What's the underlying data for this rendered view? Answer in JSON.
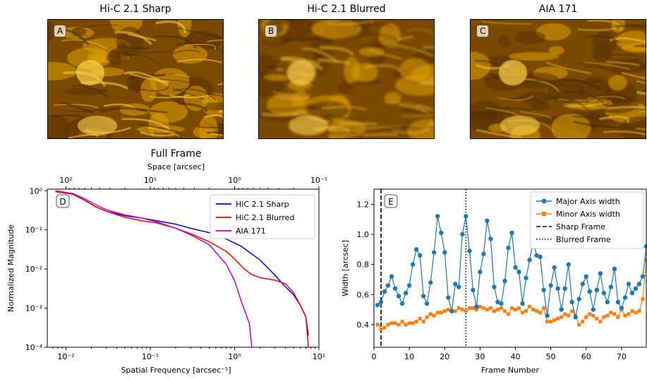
{
  "images": [
    {
      "title": "Hi-C 2.1 Sharp",
      "label": "A"
    },
    {
      "title": "Hi-C 2.1 Blurred",
      "label": "B"
    },
    {
      "title": "AIA 171",
      "label": "C"
    }
  ],
  "chart_data": [
    {
      "type": "line",
      "panel_label": "D",
      "title": "Full Frame",
      "xlabel": "Spatial Frequency  [arcsec⁻¹]",
      "ylabel": "Normalized Magnitude",
      "top_xlabel": "Space [arcsec]",
      "xscale": "log",
      "yscale": "log",
      "xlim": [
        0.006,
        10
      ],
      "ylim": [
        0.0001,
        1.1
      ],
      "x_tick_labels": [
        "10⁻²",
        "10⁻¹",
        "10⁰",
        "10¹"
      ],
      "y_tick_labels": [
        "10⁻⁴",
        "10⁻³",
        "10⁻²",
        "10⁻¹",
        "10⁰"
      ],
      "top_tick_labels": [
        "10²",
        "10¹",
        "10⁰",
        "10⁻¹"
      ],
      "legend_position": "top-right",
      "series": [
        {
          "name": "HiC 2.1 Sharp",
          "color": "#0000ff",
          "x": [
            0.0075,
            0.012,
            0.016,
            0.022,
            0.03,
            0.05,
            0.08,
            0.12,
            0.2,
            0.3,
            0.5,
            0.8,
            1.2,
            2.0,
            3.0,
            4.0,
            5.0,
            6.0,
            7.0,
            7.5
          ],
          "y": [
            0.95,
            0.82,
            0.6,
            0.4,
            0.3,
            0.23,
            0.2,
            0.17,
            0.14,
            0.11,
            0.085,
            0.058,
            0.038,
            0.017,
            0.007,
            0.0035,
            0.0022,
            0.0012,
            0.0006,
            0.0002
          ]
        },
        {
          "name": "HiC 2.1 Blurred",
          "color": "#ff0000",
          "x": [
            0.0075,
            0.012,
            0.016,
            0.022,
            0.03,
            0.05,
            0.08,
            0.12,
            0.2,
            0.3,
            0.5,
            0.8,
            1.0,
            1.3,
            1.6,
            2.0,
            3.0,
            4.0,
            5.0,
            6.0,
            7.0,
            7.5
          ],
          "y": [
            0.95,
            0.82,
            0.6,
            0.4,
            0.3,
            0.21,
            0.17,
            0.15,
            0.11,
            0.08,
            0.05,
            0.028,
            0.018,
            0.01,
            0.0072,
            0.006,
            0.0052,
            0.0042,
            0.0025,
            0.0012,
            0.0006,
            0.0001
          ]
        },
        {
          "name": "AIA 171",
          "color": "#bf00bf",
          "x": [
            0.0075,
            0.012,
            0.016,
            0.022,
            0.03,
            0.05,
            0.08,
            0.12,
            0.2,
            0.3,
            0.5,
            0.8,
            1.0,
            1.2,
            1.4,
            1.5,
            1.6
          ],
          "y": [
            1.0,
            0.85,
            0.65,
            0.45,
            0.33,
            0.24,
            0.2,
            0.16,
            0.11,
            0.075,
            0.042,
            0.013,
            0.005,
            0.0015,
            0.0006,
            0.0004,
            0.0001
          ]
        }
      ]
    },
    {
      "type": "line",
      "panel_label": "E",
      "xlabel": "Frame Number",
      "ylabel": "Width [arcsec]",
      "xlim": [
        0,
        77
      ],
      "ylim": [
        0.25,
        1.3
      ],
      "x_ticks": [
        0,
        10,
        20,
        30,
        40,
        50,
        60,
        70
      ],
      "y_ticks": [
        0.4,
        0.6,
        0.8,
        1.0,
        1.2
      ],
      "x_tick_labels": [
        "0",
        "10",
        "20",
        "30",
        "40",
        "50",
        "60",
        "70"
      ],
      "y_tick_labels": [
        "0.4",
        "0.6",
        "0.8",
        "1.0",
        "1.2"
      ],
      "legend_position": "top-right",
      "vlines": [
        {
          "name": "Sharp Frame",
          "x": 2,
          "style": "dashed"
        },
        {
          "name": "Blurred Frame",
          "x": 26,
          "style": "dotted"
        }
      ],
      "series": [
        {
          "name": "Major Axis width",
          "color": "#1f77b4",
          "marker": "circle",
          "x": [
            1,
            2,
            3,
            4,
            5,
            6,
            7,
            8,
            9,
            10,
            11,
            12,
            13,
            14,
            15,
            16,
            17,
            18,
            19,
            20,
            21,
            22,
            23,
            24,
            25,
            26,
            27,
            28,
            29,
            30,
            31,
            32,
            33,
            34,
            35,
            36,
            37,
            38,
            39,
            40,
            41,
            42,
            43,
            44,
            45,
            46,
            47,
            48,
            49,
            50,
            51,
            52,
            53,
            54,
            55,
            56,
            57,
            58,
            59,
            60,
            61,
            62,
            63,
            64,
            65,
            66,
            67,
            68,
            69,
            70,
            71,
            72,
            73,
            74,
            75,
            76,
            77
          ],
          "y": [
            0.53,
            0.55,
            0.62,
            0.66,
            0.72,
            0.64,
            0.59,
            0.54,
            0.61,
            0.66,
            0.8,
            0.9,
            0.86,
            0.59,
            0.54,
            0.68,
            0.88,
            1.12,
            1.01,
            0.88,
            0.58,
            0.49,
            0.67,
            0.65,
            1.0,
            1.12,
            0.89,
            0.63,
            0.52,
            0.75,
            0.87,
            1.09,
            0.97,
            0.65,
            0.55,
            0.54,
            0.69,
            0.91,
            1.01,
            0.78,
            0.75,
            0.54,
            0.71,
            0.83,
            0.95,
            0.86,
            0.85,
            0.63,
            0.46,
            0.66,
            0.78,
            0.64,
            0.5,
            0.64,
            0.8,
            0.55,
            0.45,
            0.57,
            0.67,
            0.72,
            0.62,
            0.5,
            0.63,
            0.74,
            0.61,
            0.55,
            0.65,
            0.77,
            0.55,
            0.51,
            0.58,
            0.67,
            0.61,
            0.64,
            0.67,
            0.72,
            0.92
          ]
        },
        {
          "name": "Minor Axis width",
          "color": "#ff7f0e",
          "marker": "square",
          "x": [
            1,
            2,
            3,
            4,
            5,
            6,
            7,
            8,
            9,
            10,
            11,
            12,
            13,
            14,
            15,
            16,
            17,
            18,
            19,
            20,
            21,
            22,
            23,
            24,
            25,
            26,
            27,
            28,
            29,
            30,
            31,
            32,
            33,
            34,
            35,
            36,
            37,
            38,
            39,
            40,
            41,
            42,
            43,
            44,
            45,
            46,
            47,
            48,
            49,
            50,
            51,
            52,
            53,
            54,
            55,
            56,
            57,
            58,
            59,
            60,
            61,
            62,
            63,
            64,
            65,
            66,
            67,
            68,
            69,
            70,
            71,
            72,
            73,
            74,
            75,
            76,
            77
          ],
          "y": [
            0.4,
            0.37,
            0.38,
            0.4,
            0.41,
            0.41,
            0.4,
            0.42,
            0.4,
            0.41,
            0.41,
            0.42,
            0.44,
            0.42,
            0.45,
            0.47,
            0.46,
            0.48,
            0.48,
            0.49,
            0.5,
            0.49,
            0.49,
            0.51,
            0.5,
            0.49,
            0.51,
            0.51,
            0.5,
            0.52,
            0.51,
            0.5,
            0.51,
            0.49,
            0.5,
            0.51,
            0.49,
            0.47,
            0.51,
            0.5,
            0.51,
            0.48,
            0.49,
            0.52,
            0.5,
            0.49,
            0.48,
            0.51,
            0.42,
            0.42,
            0.43,
            0.44,
            0.45,
            0.47,
            0.46,
            0.49,
            0.46,
            0.4,
            0.42,
            0.45,
            0.47,
            0.46,
            0.44,
            0.42,
            0.45,
            0.46,
            0.48,
            0.47,
            0.45,
            0.5,
            0.46,
            0.47,
            0.49,
            0.48,
            0.49,
            0.57,
            0.83
          ]
        }
      ]
    }
  ]
}
